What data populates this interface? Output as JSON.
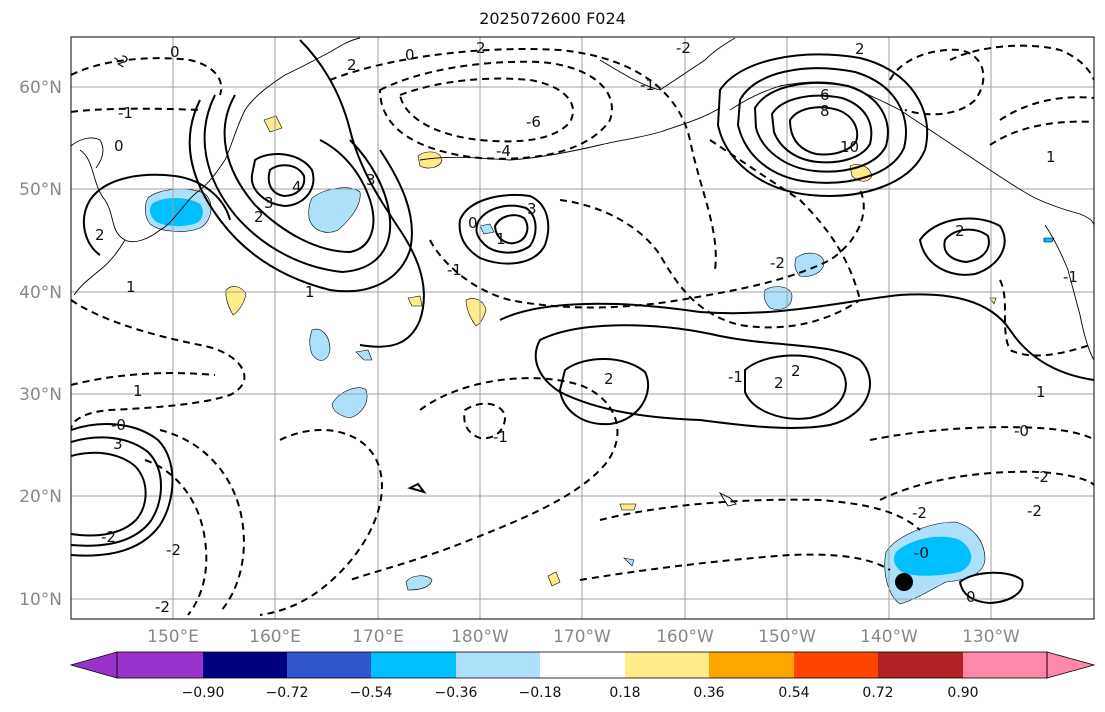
{
  "title": "2025072600 F024",
  "map": {
    "lat_ticks": [
      "10°N",
      "20°N",
      "30°N",
      "40°N",
      "50°N",
      "60°N"
    ],
    "lon_ticks": [
      "150°E",
      "160°E",
      "170°E",
      "180°W",
      "170°W",
      "160°W",
      "150°W",
      "140°W",
      "130°W"
    ],
    "contour_line_color": "#000000",
    "grid_color": "#a0a0a0",
    "coastline_color": "#000000"
  },
  "colorbar": {
    "extend": "both",
    "colors": [
      "#9933cc",
      "#000080",
      "#3355cc",
      "#00bfff",
      "#aee0fb",
      "#ffffff",
      "#ffeb8a",
      "#ffa500",
      "#ff4500",
      "#b22222",
      "#ff88aa"
    ],
    "tick_labels": [
      "−0.90",
      "−0.72",
      "−0.54",
      "−0.36",
      "−0.18",
      "0.18",
      "0.36",
      "0.54",
      "0.72",
      "0.90"
    ]
  },
  "contour_labels": [
    {
      "text": "-2"
    },
    {
      "text": "0"
    },
    {
      "text": "-1"
    },
    {
      "text": "0"
    },
    {
      "text": "2"
    },
    {
      "text": "2"
    },
    {
      "text": "3"
    },
    {
      "text": "4"
    },
    {
      "text": "1"
    },
    {
      "text": "1"
    },
    {
      "text": "2"
    },
    {
      "text": "0"
    },
    {
      "text": "3"
    },
    {
      "text": "-6"
    },
    {
      "text": "-4"
    },
    {
      "text": "0"
    },
    {
      "text": "1"
    },
    {
      "text": "3"
    },
    {
      "text": "-1"
    },
    {
      "text": "6"
    },
    {
      "text": "8"
    },
    {
      "text": "10"
    },
    {
      "text": "2"
    },
    {
      "text": "-2"
    },
    {
      "text": "-1"
    },
    {
      "text": "2"
    },
    {
      "text": "2"
    },
    {
      "text": "-2"
    },
    {
      "text": "-1"
    },
    {
      "text": "1"
    },
    {
      "text": "-1"
    },
    {
      "text": "-0"
    },
    {
      "text": "3"
    },
    {
      "text": "-2"
    },
    {
      "text": "-0"
    },
    {
      "text": "-2"
    },
    {
      "text": "-0"
    },
    {
      "text": "0"
    },
    {
      "text": "-2"
    },
    {
      "text": "-2"
    },
    {
      "text": "-1"
    },
    {
      "text": "2"
    },
    {
      "text": "1"
    },
    {
      "text": "-2"
    },
    {
      "text": "-2"
    },
    {
      "text": "2"
    },
    {
      "text": "1"
    },
    {
      "text": "2"
    }
  ],
  "marker": {
    "name": "storm-center-dot",
    "color": "#000000"
  }
}
